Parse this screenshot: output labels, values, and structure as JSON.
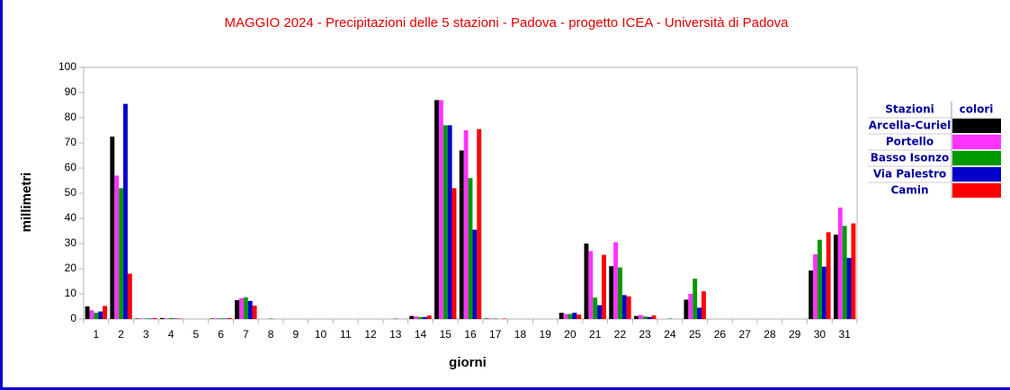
{
  "chart_data": {
    "type": "bar",
    "title": "MAGGIO 2024 - Precipitazioni delle 5 stazioni -  Padova - progetto ICEA - Università di Padova",
    "x_label": "giorni",
    "y_label": "millimetri",
    "legend_header": [
      "Stazioni",
      "colori"
    ],
    "categories": [
      "1",
      "2",
      "3",
      "4",
      "5",
      "6",
      "7",
      "8",
      "9",
      "10",
      "11",
      "12",
      "13",
      "14",
      "15",
      "16",
      "17",
      "18",
      "19",
      "20",
      "21",
      "22",
      "23",
      "24",
      "25",
      "26",
      "27",
      "28",
      "29",
      "30",
      "31"
    ],
    "series": [
      {
        "name": "Arcella-Curiel",
        "color": "#000000",
        "values": [
          5,
          72.5,
          0.2,
          0.4,
          0,
          0.2,
          7.5,
          0,
          0,
          0,
          0,
          0,
          0,
          1.2,
          87,
          67,
          0.2,
          0,
          0,
          2.5,
          30,
          21,
          1.2,
          0,
          7.7,
          0,
          0,
          0,
          0,
          19.3,
          33.5
        ]
      },
      {
        "name": "Portello",
        "color": "#ff33ff",
        "values": [
          3.5,
          57,
          0.2,
          0.3,
          0,
          0.3,
          8.3,
          0,
          0,
          0,
          0,
          0,
          0,
          1,
          87,
          75,
          0.2,
          0,
          0,
          2,
          27,
          30.5,
          1.6,
          0,
          10,
          0,
          0,
          0,
          0,
          25.7,
          44.3
        ]
      },
      {
        "name": "Basso Isonzo",
        "color": "#009900",
        "values": [
          2.5,
          52,
          0.2,
          0.4,
          0,
          0.3,
          8.6,
          0.2,
          0,
          0,
          0,
          0,
          0.2,
          0.8,
          77,
          56,
          0.2,
          0,
          0,
          2,
          8.5,
          20.5,
          1,
          0.2,
          16,
          0,
          0,
          0,
          0,
          31.5,
          37
        ]
      },
      {
        "name": "Via Palestro",
        "color": "#0000cc",
        "values": [
          3,
          85.5,
          0.2,
          0.2,
          0,
          0.2,
          7.2,
          0,
          0,
          0,
          0,
          0,
          0,
          0.8,
          77,
          35.5,
          0,
          0,
          0,
          2.5,
          5.5,
          9.5,
          0.8,
          0,
          4.5,
          0,
          0,
          0,
          0,
          20.8,
          24.3
        ]
      },
      {
        "name": "Camin",
        "color": "#ff0000",
        "values": [
          5.2,
          18,
          0.4,
          0.2,
          0,
          0.4,
          5.3,
          0,
          0,
          0,
          0,
          0,
          0,
          1.4,
          52,
          75.5,
          0.2,
          0,
          0,
          1.8,
          25.5,
          9,
          1.4,
          0,
          11,
          0,
          0,
          0,
          0,
          34.5,
          38
        ]
      }
    ],
    "ylim": [
      0,
      100
    ],
    "yticks": [
      0,
      10,
      20,
      30,
      40,
      50,
      60,
      70,
      80,
      90,
      100
    ],
    "grid": false
  }
}
